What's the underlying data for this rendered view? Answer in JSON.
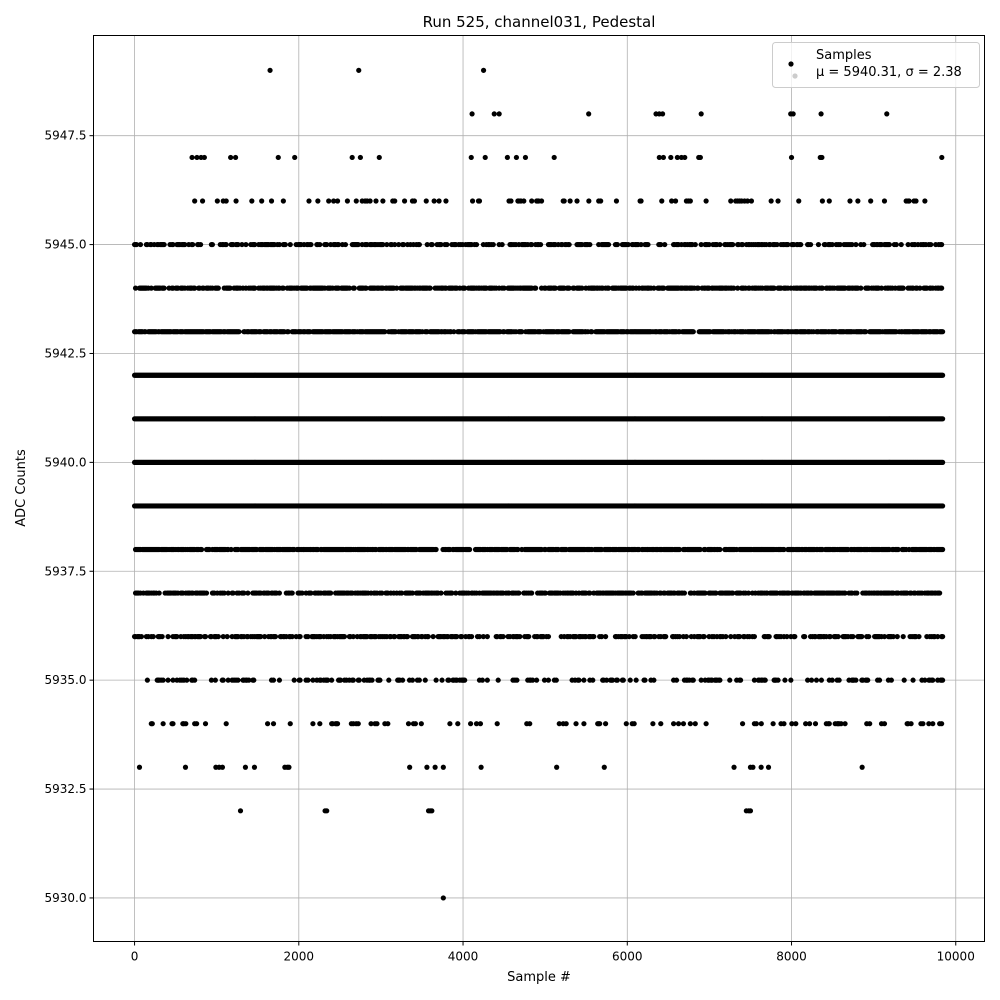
{
  "chart_data": {
    "type": "scatter",
    "title": "Run 525, channel031, Pedestal",
    "xlabel": "Sample #",
    "ylabel": "ADC Counts",
    "xlim": [
      -500,
      10350
    ],
    "ylim": [
      5929.0,
      5949.8
    ],
    "xticks": [
      0,
      2000,
      4000,
      6000,
      8000,
      10000
    ],
    "xtick_labels": [
      "0",
      "2000",
      "4000",
      "6000",
      "8000",
      "10000"
    ],
    "yticks": [
      5930.0,
      5932.5,
      5935.0,
      5937.5,
      5940.0,
      5942.5,
      5945.0,
      5947.5
    ],
    "ytick_labels": [
      "5930.0",
      "5932.5",
      "5935.0",
      "5937.5",
      "5940.0",
      "5942.5",
      "5945.0",
      "5947.5"
    ],
    "grid": true,
    "legend": {
      "placement": "top-right",
      "entries": [
        "Samples",
        "μ = 5940.31, σ = 2.38"
      ]
    },
    "series": [
      {
        "name": "Samples",
        "color": "#000000",
        "n_points": 9841,
        "x_range": [
          0,
          9840
        ],
        "mean": 5940.31,
        "sigma": 2.38,
        "level_density": [
          {
            "y": 5930,
            "x": [
              3760
            ]
          },
          {
            "y": 5932,
            "x": [
              1290,
              2320,
              2340,
              3580,
              3600,
              3620,
              7450,
              7480,
              7500
            ]
          },
          {
            "y": 5933,
            "x": [
              60,
              620,
              990,
              1030,
              1070,
              1350,
              1460,
              1830,
              1860,
              1880,
              3350,
              3560,
              3660,
              3760,
              4220,
              5140,
              5720,
              7300,
              7500,
              7530,
              7630,
              7720,
              8860
            ]
          },
          {
            "y": 5949,
            "x": [
              1650,
              2730,
              4250
            ]
          },
          {
            "y": 5948,
            "x": [
              4110,
              4380,
              4440,
              5530,
              6350,
              6390,
              6430,
              6900,
              7990,
              8020,
              8360,
              9160
            ]
          },
          {
            "y": 5947,
            "x": [
              700,
              760,
              810,
              850,
              1170,
              1230,
              1750,
              1950,
              2650,
              2750,
              2980,
              4100,
              4270,
              4540,
              4650,
              4760,
              5110,
              6390,
              6440,
              6530,
              6610,
              6660,
              6700,
              6870,
              6890,
              8000,
              8350,
              8370,
              9830
            ]
          }
        ],
        "density_bands": [
          {
            "y": 5934,
            "density": 0.1
          },
          {
            "y": 5935,
            "density": 0.25
          },
          {
            "y": 5936,
            "density": 0.45
          },
          {
            "y": 5937,
            "density": 0.6
          },
          {
            "y": 5938,
            "density": 0.75
          },
          {
            "y": 5939,
            "density": 1.0
          },
          {
            "y": 5940,
            "density": 1.0
          },
          {
            "y": 5941,
            "density": 1.0
          },
          {
            "y": 5942,
            "density": 1.0
          },
          {
            "y": 5943,
            "density": 0.8
          },
          {
            "y": 5944,
            "density": 0.6
          },
          {
            "y": 5945,
            "density": 0.45
          },
          {
            "y": 5946,
            "density": 0.12
          }
        ]
      }
    ]
  }
}
